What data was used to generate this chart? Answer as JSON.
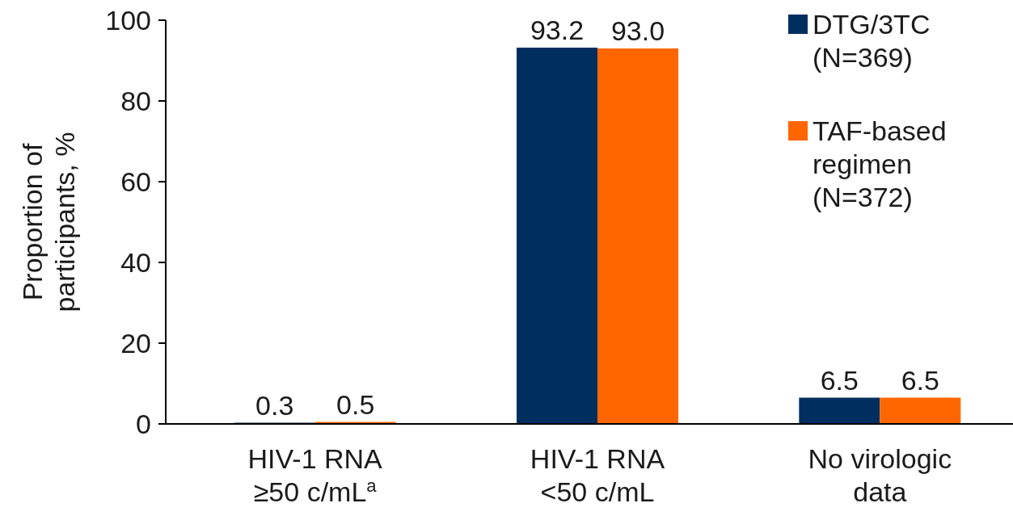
{
  "chart_data": {
    "type": "bar",
    "ylabel": "Proportion of\nparticipants, %",
    "categories": [
      "HIV-1 RNA\n≥50 c/mL$^{a}$",
      "HIV-1 RNA\n<50 c/mL",
      "No virologic\ndata"
    ],
    "series": [
      {
        "name": "DTG/3TC\n(N=369)",
        "color": "#002f5f",
        "values": [
          0.3,
          93.2,
          6.5
        ],
        "value_labels": [
          "0.3",
          "93.2",
          "6.5"
        ]
      },
      {
        "name": "TAF-based\nregimen\n(N=372)",
        "color": "#ff6600",
        "values": [
          0.5,
          93.0,
          6.5
        ],
        "value_labels": [
          "0.5",
          "93.0",
          "6.5"
        ]
      }
    ],
    "ylim": [
      0,
      100
    ],
    "yticks": [
      0,
      20,
      40,
      60,
      80,
      100
    ],
    "legend": "top right",
    "grid": false
  }
}
